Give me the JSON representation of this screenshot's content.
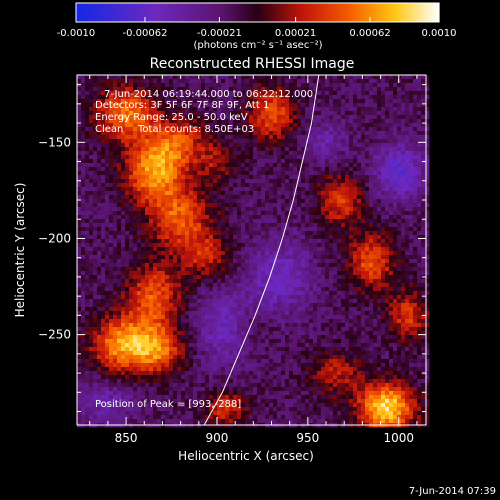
{
  "chart_data": {
    "type": "heatmap",
    "title": "Reconstructed RHESSI Image",
    "xlabel": "Heliocentric X (arcsec)",
    "ylabel": "Heliocentric Y (arcsec)",
    "xlim": [
      823,
      1015
    ],
    "ylim": [
      -297,
      -115
    ],
    "x_ticks": [
      850,
      900,
      950,
      1000
    ],
    "y_ticks": [
      -150,
      -200,
      -250
    ],
    "colorbar": {
      "range": [
        -0.001,
        0.001
      ],
      "ticks": [
        "-0.0010",
        "-0.00062",
        "-0.00021",
        "0.00021",
        "0.00062",
        "0.0010"
      ],
      "units": "(photons cm⁻² s⁻¹ asec⁻²)"
    },
    "annotations": {
      "time_range": "7-Jun-2014 06:19:44.000 to 06:22:12.000",
      "detectors": "Detectors: 3F 5F 6F 7F 8F 9F, Att 1",
      "energy": "Energy Range: 25.0 - 50.0 keV",
      "clean_label": "Clean",
      "total_counts": "Total counts: 8.50E+03",
      "peak": "Position of Peak = [993,-288]"
    },
    "peak_position": [
      993,
      -288
    ],
    "limb_curve": [
      [
        893,
        -297
      ],
      [
        903,
        -280
      ],
      [
        912,
        -260
      ],
      [
        921,
        -240
      ],
      [
        929,
        -220
      ],
      [
        936,
        -200
      ],
      [
        942,
        -180
      ],
      [
        947,
        -160
      ],
      [
        952,
        -140
      ],
      [
        956,
        -115
      ]
    ],
    "sources": [
      {
        "x": 850,
        "y": -135,
        "value": 0.0007,
        "sx": 12,
        "sy": 10
      },
      {
        "x": 865,
        "y": -165,
        "value": 0.0008,
        "sx": 11,
        "sy": 12
      },
      {
        "x": 880,
        "y": -150,
        "value": 0.0005,
        "sx": 10,
        "sy": 9
      },
      {
        "x": 880,
        "y": -190,
        "value": 0.0006,
        "sx": 12,
        "sy": 12
      },
      {
        "x": 895,
        "y": -210,
        "value": 0.0004,
        "sx": 9,
        "sy": 9
      },
      {
        "x": 865,
        "y": -230,
        "value": 0.0006,
        "sx": 11,
        "sy": 12
      },
      {
        "x": 848,
        "y": -255,
        "value": 0.0008,
        "sx": 12,
        "sy": 10
      },
      {
        "x": 868,
        "y": -258,
        "value": 0.0006,
        "sx": 10,
        "sy": 9
      },
      {
        "x": 930,
        "y": -135,
        "value": 0.0006,
        "sx": 9,
        "sy": 10
      },
      {
        "x": 968,
        "y": -180,
        "value": 0.0005,
        "sx": 9,
        "sy": 10
      },
      {
        "x": 985,
        "y": -212,
        "value": 0.0006,
        "sx": 9,
        "sy": 10
      },
      {
        "x": 1005,
        "y": -240,
        "value": 0.0005,
        "sx": 8,
        "sy": 9
      },
      {
        "x": 965,
        "y": -270,
        "value": 0.0004,
        "sx": 10,
        "sy": 8
      },
      {
        "x": 993,
        "y": -288,
        "value": 0.001,
        "sx": 11,
        "sy": 9
      },
      {
        "x": 905,
        "y": -288,
        "value": 0.0005,
        "sx": 8,
        "sy": 6
      },
      {
        "x": 900,
        "y": -160,
        "value": 0.0003,
        "sx": 8,
        "sy": 8
      },
      {
        "x": 920,
        "y": -245,
        "value": 0.0002,
        "sx": 8,
        "sy": 8
      }
    ],
    "negative_regions": [
      {
        "x": 905,
        "y": -245,
        "value": -0.0004,
        "sx": 12,
        "sy": 14
      },
      {
        "x": 935,
        "y": -220,
        "value": -0.0004,
        "sx": 12,
        "sy": 14
      },
      {
        "x": 1000,
        "y": -165,
        "value": -0.0005,
        "sx": 10,
        "sy": 10
      },
      {
        "x": 838,
        "y": -285,
        "value": -0.0003,
        "sx": 12,
        "sy": 8
      },
      {
        "x": 960,
        "y": -150,
        "value": -0.0003,
        "sx": 8,
        "sy": 8
      }
    ],
    "background": -0.00015,
    "colors": {
      "low": "#1a2bd0",
      "mid_neg": "#7a20a8",
      "zero": "#2a0010",
      "mid_pos": "#e23000",
      "high": "#ffffff"
    }
  },
  "footer": {
    "timestamp": "7-Jun-2014 07:39"
  }
}
